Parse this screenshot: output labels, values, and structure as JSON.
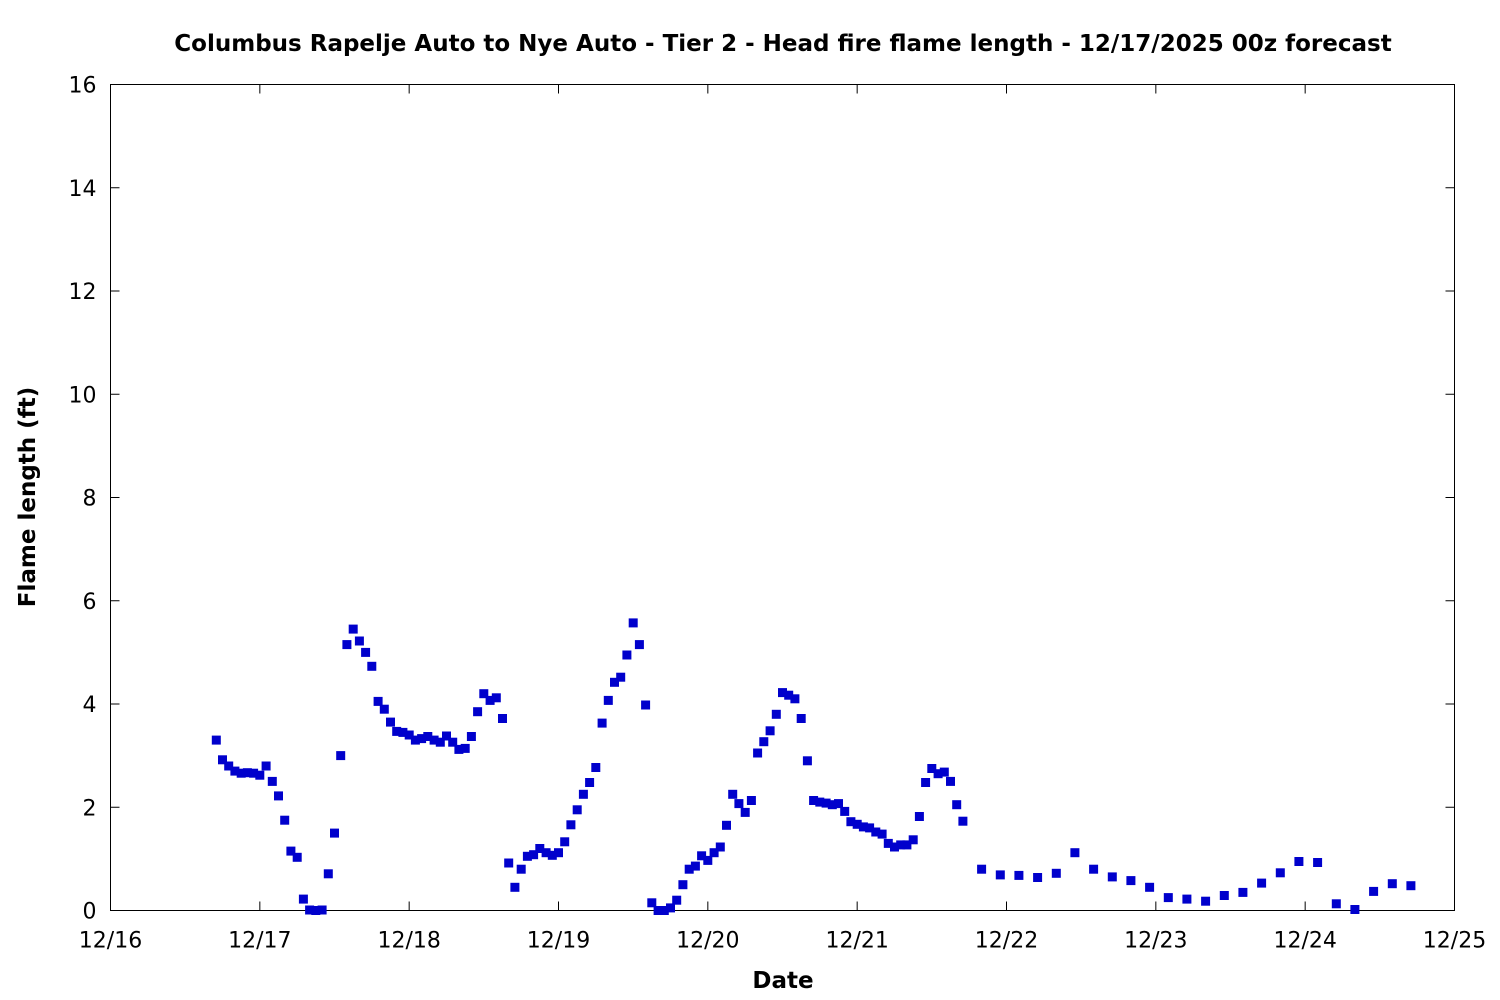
{
  "chart_data": {
    "type": "scatter",
    "title": "Columbus Rapelje Auto to Nye Auto - Tier 2 - Head fire flame length - 12/17/2025 00z forecast",
    "xlabel": "Date",
    "ylabel": "Flame length (ft)",
    "xlim": [
      "2025-12-16T00:00",
      "2025-12-25T00:00"
    ],
    "ylim": [
      0,
      16
    ],
    "x_ticks": [
      "12/16",
      "12/17",
      "12/18",
      "12/19",
      "12/20",
      "12/21",
      "12/22",
      "12/23",
      "12/24",
      "12/25"
    ],
    "y_ticks": [
      0,
      2,
      4,
      6,
      8,
      10,
      12,
      14,
      16
    ],
    "grid": false,
    "legend": "none",
    "marker_color": "#0000cc",
    "series": [
      {
        "x": [
          "2025-12-16T17:00",
          "2025-12-16T18:00",
          "2025-12-16T19:00",
          "2025-12-16T20:00",
          "2025-12-16T21:00",
          "2025-12-16T22:00",
          "2025-12-16T23:00",
          "2025-12-17T00:00",
          "2025-12-17T01:00",
          "2025-12-17T02:00",
          "2025-12-17T03:00",
          "2025-12-17T04:00",
          "2025-12-17T05:00",
          "2025-12-17T06:00",
          "2025-12-17T07:00",
          "2025-12-17T08:00",
          "2025-12-17T09:00",
          "2025-12-17T10:00",
          "2025-12-17T11:00",
          "2025-12-17T12:00",
          "2025-12-17T13:00",
          "2025-12-17T14:00",
          "2025-12-17T15:00",
          "2025-12-17T16:00",
          "2025-12-17T17:00",
          "2025-12-17T18:00",
          "2025-12-17T19:00",
          "2025-12-17T20:00",
          "2025-12-17T21:00",
          "2025-12-17T22:00",
          "2025-12-17T23:00",
          "2025-12-18T00:00",
          "2025-12-18T01:00",
          "2025-12-18T02:00",
          "2025-12-18T03:00",
          "2025-12-18T04:00",
          "2025-12-18T05:00",
          "2025-12-18T06:00",
          "2025-12-18T07:00",
          "2025-12-18T08:00",
          "2025-12-18T09:00",
          "2025-12-18T10:00",
          "2025-12-18T11:00",
          "2025-12-18T12:00",
          "2025-12-18T13:00",
          "2025-12-18T14:00",
          "2025-12-18T15:00",
          "2025-12-18T16:00",
          "2025-12-18T17:00",
          "2025-12-18T18:00",
          "2025-12-18T19:00",
          "2025-12-18T20:00",
          "2025-12-18T21:00",
          "2025-12-18T22:00",
          "2025-12-18T23:00",
          "2025-12-19T00:00",
          "2025-12-19T01:00",
          "2025-12-19T02:00",
          "2025-12-19T03:00",
          "2025-12-19T04:00",
          "2025-12-19T05:00",
          "2025-12-19T06:00",
          "2025-12-19T07:00",
          "2025-12-19T08:00",
          "2025-12-19T09:00",
          "2025-12-19T10:00",
          "2025-12-19T11:00",
          "2025-12-19T12:00",
          "2025-12-19T13:00",
          "2025-12-19T14:00",
          "2025-12-19T15:00",
          "2025-12-19T16:00",
          "2025-12-19T17:00",
          "2025-12-19T18:00",
          "2025-12-19T19:00",
          "2025-12-19T20:00",
          "2025-12-19T21:00",
          "2025-12-19T22:00",
          "2025-12-19T23:00",
          "2025-12-20T00:00",
          "2025-12-20T01:00",
          "2025-12-20T02:00",
          "2025-12-20T03:00",
          "2025-12-20T04:00",
          "2025-12-20T05:00",
          "2025-12-20T06:00",
          "2025-12-20T07:00",
          "2025-12-20T08:00",
          "2025-12-20T09:00",
          "2025-12-20T10:00",
          "2025-12-20T11:00",
          "2025-12-20T12:00",
          "2025-12-20T13:00",
          "2025-12-20T14:00",
          "2025-12-20T15:00",
          "2025-12-20T16:00",
          "2025-12-20T17:00",
          "2025-12-20T18:00",
          "2025-12-20T19:00",
          "2025-12-20T20:00",
          "2025-12-20T21:00",
          "2025-12-20T22:00",
          "2025-12-20T23:00",
          "2025-12-21T00:00",
          "2025-12-21T01:00",
          "2025-12-21T02:00",
          "2025-12-21T03:00",
          "2025-12-21T04:00",
          "2025-12-21T05:00",
          "2025-12-21T06:00",
          "2025-12-21T07:00",
          "2025-12-21T08:00",
          "2025-12-21T09:00",
          "2025-12-21T10:00",
          "2025-12-21T11:00",
          "2025-12-21T12:00",
          "2025-12-21T13:00",
          "2025-12-21T14:00",
          "2025-12-21T15:00",
          "2025-12-21T16:00",
          "2025-12-21T17:00",
          "2025-12-21T20:00",
          "2025-12-21T23:00",
          "2025-12-22T02:00",
          "2025-12-22T05:00",
          "2025-12-22T08:00",
          "2025-12-22T11:00",
          "2025-12-22T14:00",
          "2025-12-22T17:00",
          "2025-12-22T20:00",
          "2025-12-22T23:00",
          "2025-12-23T02:00",
          "2025-12-23T05:00",
          "2025-12-23T08:00",
          "2025-12-23T11:00",
          "2025-12-23T14:00",
          "2025-12-23T17:00",
          "2025-12-23T20:00",
          "2025-12-23T23:00",
          "2025-12-24T02:00",
          "2025-12-24T05:00",
          "2025-12-24T08:00",
          "2025-12-24T11:00",
          "2025-12-24T14:00",
          "2025-12-24T17:00"
        ],
        "y": [
          3.3,
          2.92,
          2.8,
          2.7,
          2.66,
          2.67,
          2.66,
          2.62,
          2.8,
          2.5,
          2.22,
          1.75,
          1.15,
          1.03,
          0.22,
          0.01,
          0.0,
          0.01,
          0.71,
          1.5,
          3.0,
          5.15,
          5.45,
          5.22,
          5.0,
          4.73,
          4.05,
          3.9,
          3.65,
          3.47,
          3.45,
          3.4,
          3.3,
          3.33,
          3.37,
          3.3,
          3.26,
          3.38,
          3.26,
          3.12,
          3.14,
          3.37,
          3.85,
          4.2,
          4.07,
          4.12,
          3.72,
          0.92,
          0.45,
          0.8,
          1.05,
          1.08,
          1.2,
          1.12,
          1.07,
          1.12,
          1.33,
          1.66,
          1.95,
          2.25,
          2.48,
          2.77,
          3.63,
          4.07,
          4.42,
          4.52,
          4.95,
          5.57,
          5.15,
          3.98,
          0.15,
          0.0,
          0.0,
          0.05,
          0.2,
          0.5,
          0.8,
          0.86,
          1.06,
          0.97,
          1.12,
          1.23,
          1.65,
          2.25,
          2.07,
          1.9,
          2.13,
          3.05,
          3.27,
          3.48,
          3.8,
          4.22,
          4.17,
          4.1,
          3.72,
          2.9,
          2.13,
          2.1,
          2.08,
          2.05,
          2.07,
          1.92,
          1.72,
          1.67,
          1.62,
          1.6,
          1.52,
          1.48,
          1.3,
          1.23,
          1.27,
          1.27,
          1.37,
          1.82,
          2.48,
          2.75,
          2.65,
          2.68,
          2.5,
          2.05,
          1.73,
          0.8,
          0.69,
          0.68,
          0.64,
          0.72,
          1.12,
          0.8,
          0.65,
          0.58,
          0.45,
          0.25,
          0.22,
          0.18,
          0.29,
          0.35,
          0.53,
          0.73,
          0.95,
          0.93,
          0.13,
          0.02,
          0.37,
          0.52,
          0.48
        ]
      }
    ]
  }
}
